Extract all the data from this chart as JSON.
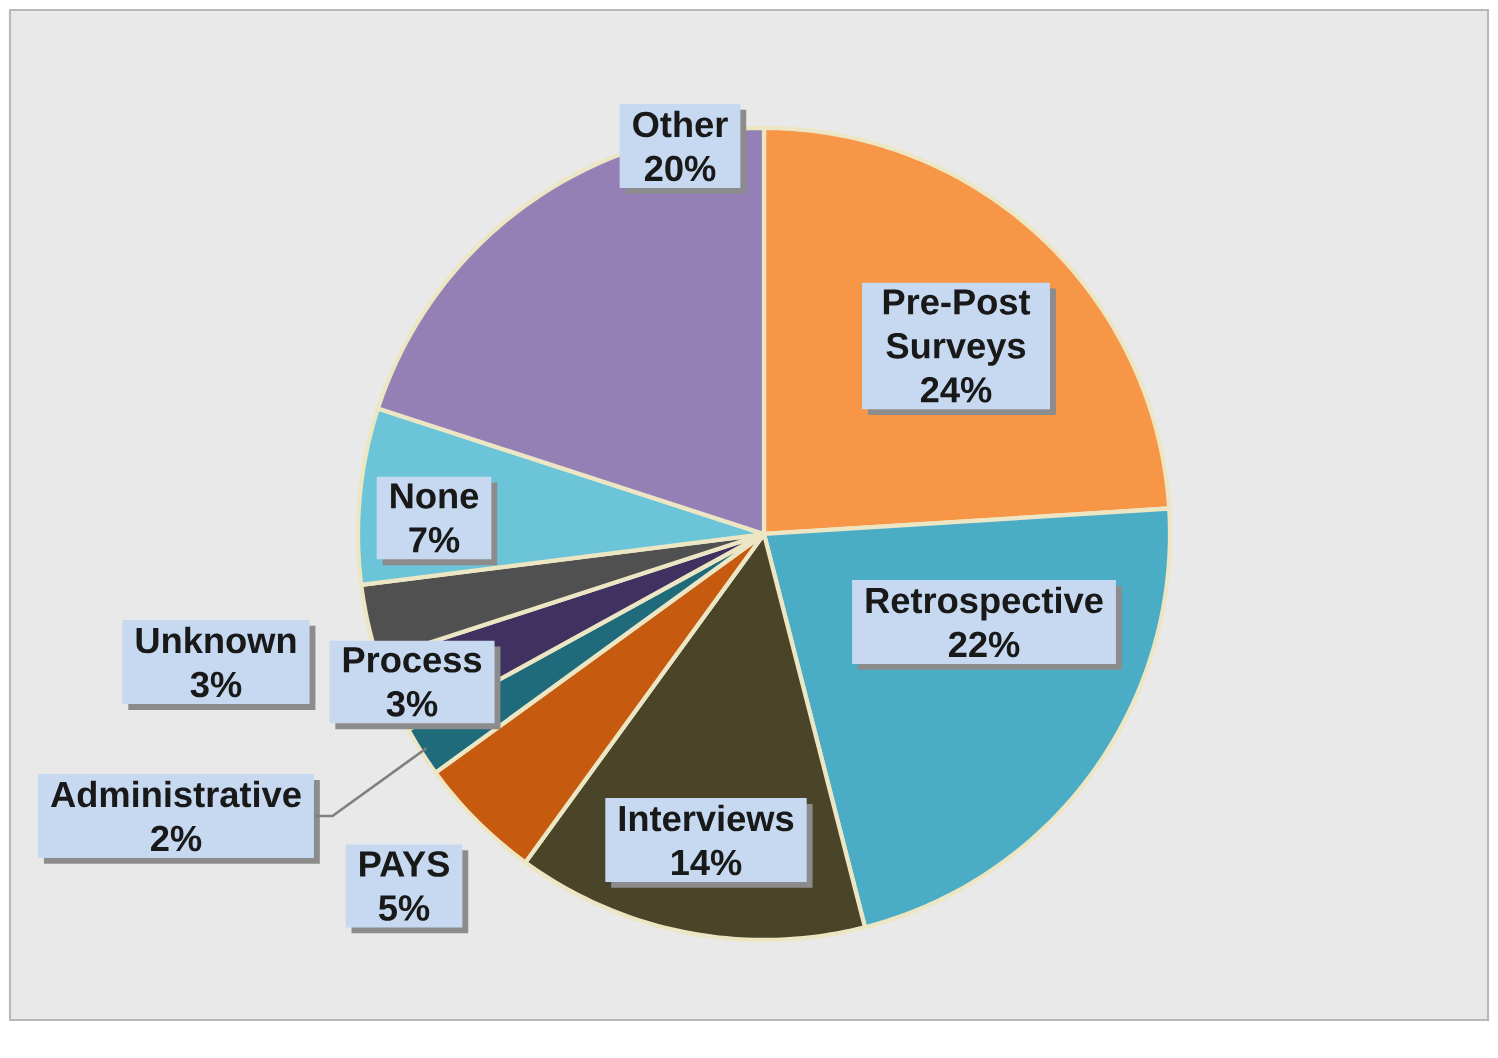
{
  "chart_data": {
    "type": "pie",
    "categories": [
      "Pre-Post Surveys",
      "Retrospective",
      "Interviews",
      "PAYS",
      "Administrative",
      "Process",
      "Unknown",
      "None",
      "Other"
    ],
    "values": [
      24,
      22,
      14,
      5,
      2,
      3,
      3,
      7,
      20
    ],
    "value_labels": [
      "24%",
      "22%",
      "14%",
      "5%",
      "2%",
      "3%",
      "3%",
      "7%",
      "20%"
    ],
    "colors": [
      "#f79646",
      "#4bacc6",
      "#4a4428",
      "#c65a0f",
      "#1f6b7c",
      "#3f3160",
      "#505050",
      "#6cc4d8",
      "#9580b5"
    ]
  }
}
